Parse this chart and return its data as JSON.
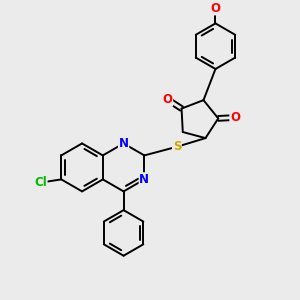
{
  "bg_color": "#ebebeb",
  "bond_color": "#000000",
  "bond_width": 1.4,
  "atom_colors": {
    "N": "#0000ff",
    "O": "#ff0000",
    "S": "#ccaa00",
    "Cl": "#00bb00",
    "C": "#000000"
  },
  "font_size_atom": 8.5
}
